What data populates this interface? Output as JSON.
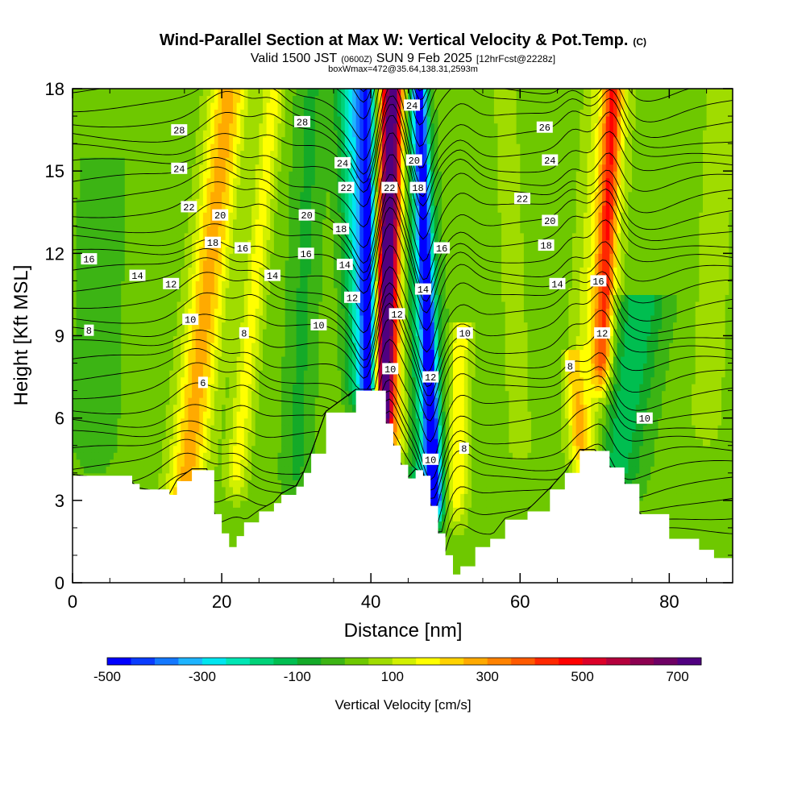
{
  "title": {
    "main": "Wind-Parallel Section at Max W: Vertical Velocity & Pot.Temp.",
    "copyright": "(C)",
    "valid_prefix": "Valid 1500 JST",
    "valid_utc": "(0600Z)",
    "valid_date": "SUN 9 Feb 2025",
    "forecast": "[12hrFcst@2228z]",
    "boxinfo": "boxWmax=472@35.64,138.31,2593m"
  },
  "chart_data": {
    "type": "heatmap",
    "xlabel": "Distance [nm]",
    "ylabel": "Height [Kft MSL]",
    "xlim": [
      0,
      88.5
    ],
    "ylim": [
      0,
      18
    ],
    "xticks": [
      0,
      20,
      40,
      60,
      80
    ],
    "yticks": [
      0,
      3,
      6,
      9,
      12,
      15,
      18
    ],
    "colorbar": {
      "label": "Vertical Velocity [cm/s]",
      "range": [
        -500,
        750
      ],
      "step": 50,
      "tick_values": [
        -500,
        -300,
        -100,
        100,
        300,
        500,
        700
      ],
      "tick_labels": [
        "-500",
        "-300",
        "-100",
        "100",
        "300",
        "500",
        "700"
      ],
      "colors": [
        "#0000ff",
        "#0a3cff",
        "#1478ff",
        "#1eb4ff",
        "#00e6f0",
        "#00e6b4",
        "#00d278",
        "#00be50",
        "#14aa28",
        "#3cb414",
        "#6ec800",
        "#a0dc00",
        "#d2f000",
        "#ffff00",
        "#ffd200",
        "#ffaa00",
        "#ff8200",
        "#ff5a00",
        "#ff2800",
        "#ff0000",
        "#dc0028",
        "#b4003c",
        "#8c0050",
        "#6e0064",
        "#500080"
      ]
    },
    "terrain_profile": {
      "x": [
        0,
        8,
        9,
        13,
        14,
        16,
        18,
        19,
        20,
        21,
        22,
        23,
        25,
        27,
        28,
        30,
        31,
        32,
        34,
        38,
        40,
        42,
        43,
        44,
        45,
        46,
        47,
        48,
        49,
        50,
        51,
        52,
        54,
        56,
        58,
        61,
        64,
        66,
        68,
        70,
        72,
        74,
        76,
        80,
        84,
        86,
        88.5
      ],
      "height": [
        3.9,
        3.6,
        3.4,
        3.2,
        3.7,
        4.1,
        4.1,
        2.5,
        1.8,
        1.3,
        1.7,
        2.2,
        2.6,
        2.9,
        3.2,
        3.5,
        4.0,
        4.7,
        6.2,
        7.0,
        7.0,
        5.8,
        5.0,
        4.3,
        3.8,
        4.1,
        3.9,
        2.8,
        1.8,
        1.0,
        0.3,
        0.6,
        1.3,
        1.6,
        2.3,
        2.6,
        3.4,
        4.0,
        4.8,
        4.8,
        4.2,
        3.6,
        2.5,
        1.6,
        1.2,
        0.9,
        0.3
      ]
    },
    "w_features": [
      {
        "x0": 21,
        "x1": 15,
        "z0": 18,
        "z1": 3,
        "width": 2.5,
        "w": 250
      },
      {
        "x0": 27,
        "x1": 22,
        "z0": 18,
        "z1": 4,
        "width": 1.5,
        "w": 150
      },
      {
        "x0": 32,
        "x1": 30,
        "z0": 18,
        "z1": 4,
        "width": 2.0,
        "w": -80
      },
      {
        "x0": 43,
        "x1": 41.5,
        "z0": 18,
        "z1": 6,
        "width": 1.4,
        "w": 650
      },
      {
        "x0": 43,
        "x1": 42.5,
        "z0": 18,
        "z1": 5,
        "width": 3.5,
        "w": 220
      },
      {
        "x0": 39.5,
        "x1": 40,
        "z0": 18,
        "z1": 7,
        "width": 1.2,
        "w": -450
      },
      {
        "x0": 37.5,
        "x1": 39,
        "z0": 18,
        "z1": 7,
        "width": 2.0,
        "w": -300
      },
      {
        "x0": 46.5,
        "x1": 48.5,
        "z0": 18,
        "z1": 3,
        "width": 1.0,
        "w": -420
      },
      {
        "x0": 45,
        "x1": 47.5,
        "z0": 18,
        "z1": 3,
        "width": 2.5,
        "w": -250
      },
      {
        "x0": 52,
        "x1": 51.5,
        "z0": 9,
        "z1": 3,
        "width": 1.4,
        "w": 180
      },
      {
        "x0": 58,
        "x1": 60,
        "z0": 18,
        "z1": 5,
        "width": 2.0,
        "w": 50
      },
      {
        "x0": 72.5,
        "x1": 71,
        "z0": 18,
        "z1": 8,
        "width": 1.2,
        "w": 300
      },
      {
        "x0": 72,
        "x1": 69,
        "z0": 18,
        "z1": 5,
        "width": 2.8,
        "w": 150
      },
      {
        "x0": 67,
        "x1": 68.5,
        "z0": 8,
        "z1": 4,
        "width": 1.2,
        "w": 150
      },
      {
        "x0": 76,
        "x1": 72.5,
        "z0": 10,
        "z1": 4,
        "width": 3.5,
        "w": -160
      },
      {
        "x0": 87,
        "x1": 85,
        "z0": 18,
        "z1": 6,
        "width": 2.0,
        "w": 80
      },
      {
        "x0": 4,
        "x1": 3,
        "z0": 15,
        "z1": 5,
        "width": 3.0,
        "w": -60
      }
    ],
    "theta_contour_labels": [
      {
        "v": "28",
        "x": 14.3,
        "z": 16.5
      },
      {
        "v": "24",
        "x": 14.3,
        "z": 15.1
      },
      {
        "v": "22",
        "x": 15.6,
        "z": 13.7
      },
      {
        "v": "20",
        "x": 19.8,
        "z": 13.4
      },
      {
        "v": "18",
        "x": 18.8,
        "z": 12.4
      },
      {
        "v": "16",
        "x": 22.8,
        "z": 12.2
      },
      {
        "v": "14",
        "x": 26.8,
        "z": 11.2
      },
      {
        "v": "12",
        "x": 13.2,
        "z": 10.9
      },
      {
        "v": "10",
        "x": 15.8,
        "z": 9.6
      },
      {
        "v": "8",
        "x": 23.0,
        "z": 9.1
      },
      {
        "v": "6",
        "x": 17.5,
        "z": 7.3
      },
      {
        "v": "16",
        "x": 2.2,
        "z": 11.8
      },
      {
        "v": "14",
        "x": 8.7,
        "z": 11.2
      },
      {
        "v": "8",
        "x": 2.2,
        "z": 9.2
      },
      {
        "v": "28",
        "x": 30.8,
        "z": 16.8
      },
      {
        "v": "24",
        "x": 36.2,
        "z": 15.3
      },
      {
        "v": "22",
        "x": 36.7,
        "z": 14.4
      },
      {
        "v": "20",
        "x": 31.4,
        "z": 13.4
      },
      {
        "v": "18",
        "x": 36.0,
        "z": 12.9
      },
      {
        "v": "16",
        "x": 31.3,
        "z": 12.0
      },
      {
        "v": "14",
        "x": 36.5,
        "z": 11.6
      },
      {
        "v": "12",
        "x": 37.5,
        "z": 10.4
      },
      {
        "v": "10",
        "x": 33.0,
        "z": 9.4
      },
      {
        "v": "24",
        "x": 45.5,
        "z": 17.4
      },
      {
        "v": "20",
        "x": 45.8,
        "z": 15.4
      },
      {
        "v": "22",
        "x": 42.5,
        "z": 14.4
      },
      {
        "v": "18",
        "x": 46.3,
        "z": 14.4
      },
      {
        "v": "16",
        "x": 49.5,
        "z": 12.2
      },
      {
        "v": "14",
        "x": 47.0,
        "z": 10.7
      },
      {
        "v": "12",
        "x": 43.5,
        "z": 9.8
      },
      {
        "v": "10",
        "x": 42.6,
        "z": 7.8
      },
      {
        "v": "12",
        "x": 48.0,
        "z": 7.5
      },
      {
        "v": "10",
        "x": 48.0,
        "z": 4.5
      },
      {
        "v": "10",
        "x": 52.6,
        "z": 9.1
      },
      {
        "v": "8",
        "x": 52.5,
        "z": 4.9
      },
      {
        "v": "26",
        "x": 63.3,
        "z": 16.6
      },
      {
        "v": "24",
        "x": 64.0,
        "z": 15.4
      },
      {
        "v": "22",
        "x": 60.3,
        "z": 14.0
      },
      {
        "v": "20",
        "x": 64.0,
        "z": 13.2
      },
      {
        "v": "18",
        "x": 63.5,
        "z": 12.3
      },
      {
        "v": "14",
        "x": 65.0,
        "z": 10.9
      },
      {
        "v": "16",
        "x": 70.5,
        "z": 11.0
      },
      {
        "v": "12",
        "x": 71.0,
        "z": 9.1
      },
      {
        "v": "8",
        "x": 66.7,
        "z": 7.9
      },
      {
        "v": "10",
        "x": 76.7,
        "z": 6.0
      }
    ]
  }
}
